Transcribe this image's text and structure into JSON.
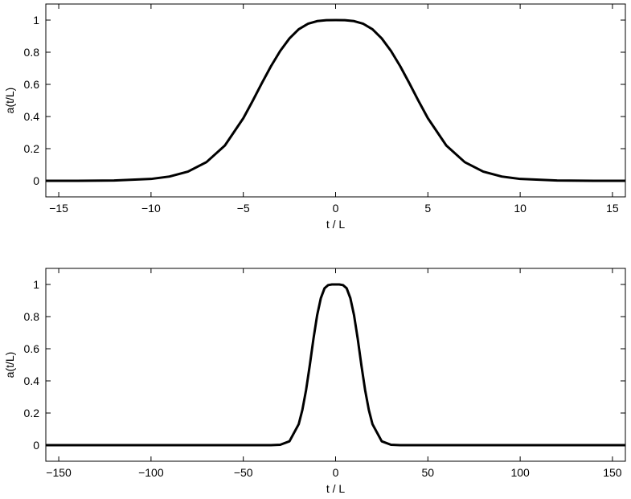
{
  "chart_data": [
    {
      "type": "line",
      "xlabel": "t / L",
      "ylabel": "a(t/L)",
      "xlim": [
        -15.7,
        15.7
      ],
      "ylim": [
        -0.1,
        1.1
      ],
      "xticks": [
        -15,
        -10,
        -5,
        0,
        5,
        10,
        15
      ],
      "xtick_labels": [
        "−15",
        "−10",
        "−5",
        "0",
        "5",
        "10",
        "15"
      ],
      "yticks": [
        0,
        0.2,
        0.4,
        0.6,
        0.8,
        1
      ],
      "ytick_labels": [
        "0",
        "0.2",
        "0.4",
        "0.6",
        "0.8",
        "1"
      ],
      "grid": false,
      "series": [
        {
          "color": "#000000",
          "x": [
            -15.7,
            -14,
            -12,
            -10,
            -9,
            -8,
            -7,
            -6,
            -5,
            -4.5,
            -4,
            -3.5,
            -3,
            -2.5,
            -2,
            -1.5,
            -1,
            -0.5,
            0,
            0.5,
            1,
            1.5,
            2,
            2.5,
            3,
            3.5,
            4,
            4.5,
            5,
            6,
            7,
            8,
            9,
            10,
            12,
            14,
            15.7
          ],
          "y": [
            0,
            0.0002,
            0.0018,
            0.0116,
            0.0266,
            0.0573,
            0.1159,
            0.2195,
            0.3894,
            0.4955,
            0.6063,
            0.7131,
            0.8083,
            0.886,
            0.9427,
            0.9769,
            0.9936,
            0.9994,
            1,
            0.9994,
            0.9936,
            0.9769,
            0.9427,
            0.886,
            0.8083,
            0.7131,
            0.6063,
            0.4955,
            0.3894,
            0.2195,
            0.1159,
            0.0573,
            0.0266,
            0.0116,
            0.0018,
            0.0002,
            0
          ]
        }
      ]
    },
    {
      "type": "line",
      "xlabel": "t / L",
      "ylabel": "a(t/L)",
      "xlim": [
        -157,
        157
      ],
      "ylim": [
        -0.1,
        1.1
      ],
      "xticks": [
        -150,
        -100,
        -50,
        0,
        50,
        100,
        150
      ],
      "xtick_labels": [
        "−150",
        "−100",
        "−50",
        "0",
        "50",
        "100",
        "150"
      ],
      "yticks": [
        0,
        0.2,
        0.4,
        0.6,
        0.8,
        1
      ],
      "ytick_labels": [
        "0",
        "0.2",
        "0.4",
        "0.6",
        "0.8",
        "1"
      ],
      "grid": false,
      "series": [
        {
          "color": "#000000",
          "x": [
            -157,
            -60,
            -40,
            -35,
            -30,
            -25,
            -20,
            -18,
            -16,
            -14,
            -12,
            -10,
            -8,
            -6,
            -4,
            -2,
            0,
            2,
            4,
            6,
            8,
            10,
            12,
            14,
            16,
            18,
            20,
            25,
            30,
            35,
            40,
            60,
            157
          ],
          "y": [
            0,
            0,
            0,
            0.0001,
            0.0025,
            0.0241,
            0.1302,
            0.2195,
            0.3426,
            0.4955,
            0.6616,
            0.8083,
            0.9146,
            0.976,
            0.996,
            0.9998,
            1,
            0.9998,
            0.996,
            0.976,
            0.9146,
            0.8083,
            0.6616,
            0.4955,
            0.3426,
            0.2195,
            0.1302,
            0.0241,
            0.0025,
            0.0001,
            0,
            0,
            0
          ]
        }
      ]
    }
  ]
}
